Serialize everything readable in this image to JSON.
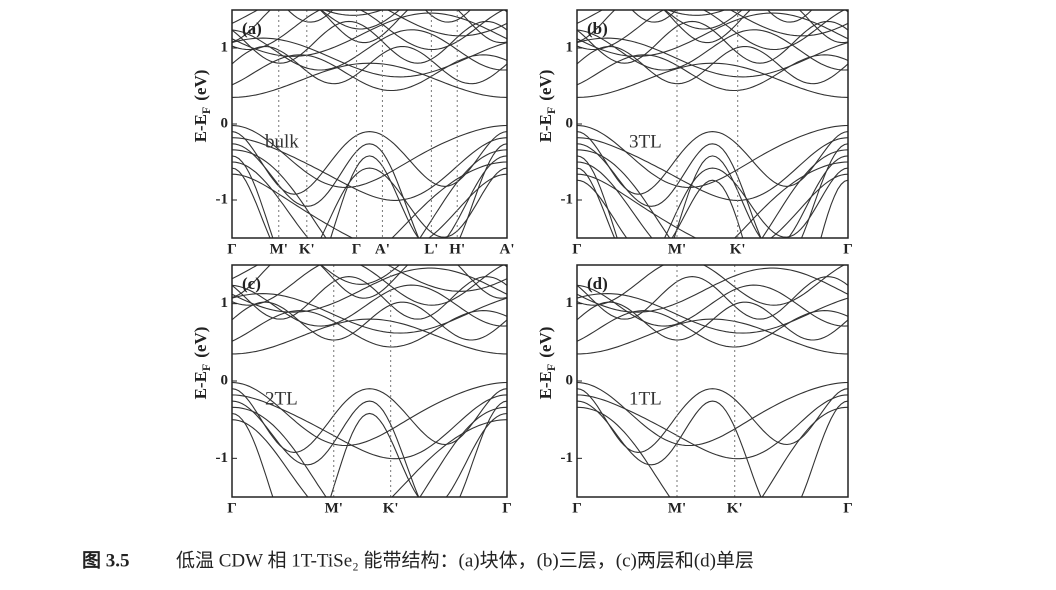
{
  "figure": {
    "panels": [
      {
        "tag": "(a)",
        "name": "bulk",
        "ylabel": "E-E",
        "ylabel_sub": "F",
        "ylabel_unit": "(eV)",
        "ylim": [
          -1.5,
          1.5
        ],
        "yticks": [
          -1,
          0,
          1
        ],
        "xlim": [
          0,
          1
        ],
        "xticks": [
          {
            "value": 0,
            "label": "Γ"
          },
          {
            "value": 0.17,
            "label": "M'"
          },
          {
            "value": 0.272,
            "label": "K'"
          },
          {
            "value": 0.453,
            "label": "Γ"
          },
          {
            "value": 0.547,
            "label": "A'"
          },
          {
            "value": 0.725,
            "label": "L'"
          },
          {
            "value": 0.819,
            "label": "H'"
          },
          {
            "value": 1,
            "label": "A'"
          }
        ]
      },
      {
        "tag": "(b)",
        "name": "3TL",
        "ylabel": "E-E",
        "ylabel_sub": "F",
        "ylabel_unit": "(eV)",
        "ylim": [
          -1.5,
          1.5
        ],
        "yticks": [
          -1,
          0,
          1
        ],
        "xlim": [
          0,
          1
        ],
        "xticks": [
          {
            "value": 0,
            "label": "Γ"
          },
          {
            "value": 0.369,
            "label": "M'"
          },
          {
            "value": 0.593,
            "label": "K'"
          },
          {
            "value": 1,
            "label": "Γ"
          }
        ]
      },
      {
        "tag": "(c)",
        "name": "2TL",
        "ylabel": "E-E",
        "ylabel_sub": "F",
        "ylabel_unit": "(eV)",
        "ylim": [
          -1.5,
          1.5
        ],
        "yticks": [
          -1,
          0,
          1
        ],
        "xlim": [
          0,
          1
        ],
        "xticks": [
          {
            "value": 0,
            "label": "Γ"
          },
          {
            "value": 0.37,
            "label": "M'"
          },
          {
            "value": 0.577,
            "label": "K'"
          },
          {
            "value": 1,
            "label": "Γ"
          }
        ]
      },
      {
        "tag": "(d)",
        "name": "1TL",
        "ylabel": "E-E",
        "ylabel_sub": "F",
        "ylabel_unit": "(eV)",
        "ylim": [
          -1.5,
          1.5
        ],
        "yticks": [
          -1,
          0,
          1
        ],
        "xlim": [
          0,
          1
        ],
        "xticks": [
          {
            "value": 0,
            "label": "Γ"
          },
          {
            "value": 0.369,
            "label": "M'"
          },
          {
            "value": 0.582,
            "label": "K'"
          },
          {
            "value": 1,
            "label": "Γ"
          }
        ]
      }
    ],
    "caption": {
      "number": "图 3.5",
      "text": "低温 CDW 相 1T-TiSe₂ 能带结构：(a)块体，(b)三层，(c)两层和(d)单层"
    }
  }
}
